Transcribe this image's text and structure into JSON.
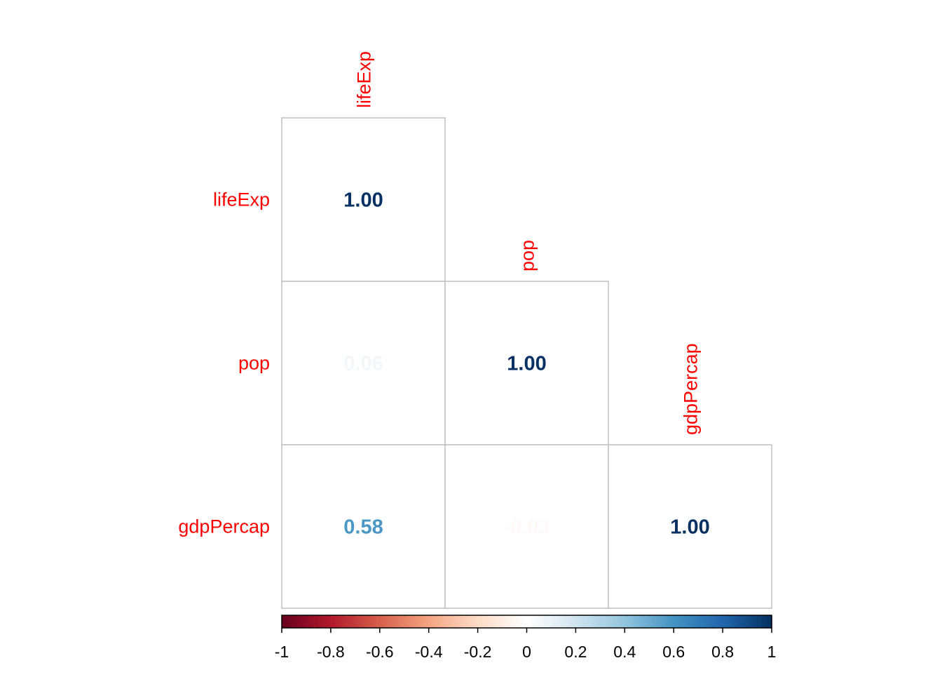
{
  "chart_data": {
    "type": "heatmap",
    "variables": [
      "lifeExp",
      "pop",
      "gdpPercap"
    ],
    "matrix": [
      [
        1.0,
        null,
        null
      ],
      [
        0.06,
        1.0,
        null
      ],
      [
        0.58,
        -0.03,
        1.0
      ]
    ],
    "value_labels": [
      [
        "1.00",
        "",
        ""
      ],
      [
        "0.06",
        "1.00",
        ""
      ],
      [
        "0.58",
        "-0.03",
        "1.00"
      ]
    ],
    "shape": "lower triangle",
    "colorbar": {
      "range": [
        -1,
        1
      ],
      "ticks": [
        -1,
        -0.8,
        -0.6,
        -0.4,
        -0.2,
        0,
        0.2,
        0.4,
        0.6,
        0.8,
        1
      ],
      "tick_labels": [
        "-1",
        "-0.8",
        "-0.6",
        "-0.4",
        "-0.2",
        "0",
        "0.2",
        "0.4",
        "0.6",
        "0.8",
        "1"
      ],
      "palette": [
        "#67001f",
        "#b2182b",
        "#d6604d",
        "#f4a582",
        "#fddbc7",
        "#ffffff",
        "#d1e5f0",
        "#92c5de",
        "#4393c3",
        "#2166ac",
        "#053061"
      ],
      "placement": "bottom"
    },
    "label_color": "#ff0000",
    "grid_color": "#c0c0c0"
  }
}
